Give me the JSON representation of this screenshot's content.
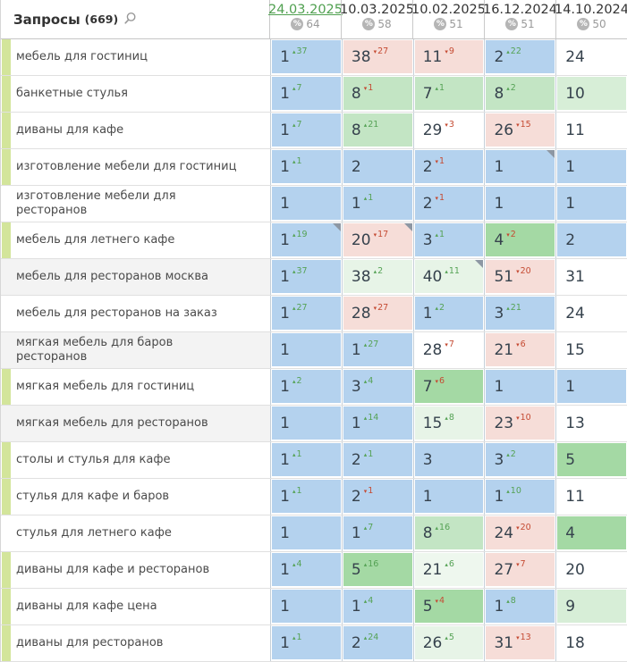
{
  "palette": {
    "blue": "#b4d2ee",
    "pink": "#f6ddd8",
    "gmed": "#a4d9a4",
    "glight": "#c3e5c4",
    "glighter": "#d7eed7",
    "gpale": "#e7f4e7",
    "gpalest": "#eef7ee",
    "white": "#ffffff",
    "strip_green": "#d3e59b",
    "current_date_green": "#50a050",
    "delta_up_color": "#55a255",
    "delta_down_color": "#c54b33",
    "note_corner_gray": "#8d97a3"
  },
  "marks": {
    "up": "▴",
    "down": "▾",
    "percent_icon": "%"
  },
  "header": {
    "title": "Запросы",
    "count": "(669)",
    "search_icon": "magnifier",
    "columns": [
      {
        "date": "24.03.2025",
        "percent": "64",
        "current": true
      },
      {
        "date": "10.03.2025",
        "percent": "58",
        "current": false
      },
      {
        "date": "10.02.2025",
        "percent": "51",
        "current": false
      },
      {
        "date": "16.12.2024",
        "percent": "51",
        "current": false
      },
      {
        "date": "14.10.2024",
        "percent": "50",
        "current": false
      }
    ]
  },
  "rows": [
    {
      "label": "мебель для гостиниц",
      "strip": true,
      "shade": false,
      "cells": [
        {
          "v": "1",
          "d": "37",
          "dir": "up",
          "bg": "blue",
          "note": false
        },
        {
          "v": "38",
          "d": "27",
          "dir": "down",
          "bg": "pink",
          "note": false
        },
        {
          "v": "11",
          "d": "9",
          "dir": "down",
          "bg": "pink",
          "note": false
        },
        {
          "v": "2",
          "d": "22",
          "dir": "up",
          "bg": "blue",
          "note": false
        },
        {
          "v": "24",
          "d": "",
          "dir": "",
          "bg": "white",
          "note": false
        }
      ]
    },
    {
      "label": "банкетные стулья",
      "strip": true,
      "shade": false,
      "cells": [
        {
          "v": "1",
          "d": "7",
          "dir": "up",
          "bg": "blue",
          "note": false
        },
        {
          "v": "8",
          "d": "1",
          "dir": "down",
          "bg": "glight",
          "note": false
        },
        {
          "v": "7",
          "d": "1",
          "dir": "up",
          "bg": "glight",
          "note": false
        },
        {
          "v": "8",
          "d": "2",
          "dir": "up",
          "bg": "glight",
          "note": false
        },
        {
          "v": "10",
          "d": "",
          "dir": "",
          "bg": "glighter",
          "note": false
        }
      ]
    },
    {
      "label": "диваны для кафе",
      "strip": true,
      "shade": false,
      "cells": [
        {
          "v": "1",
          "d": "7",
          "dir": "up",
          "bg": "blue",
          "note": false
        },
        {
          "v": "8",
          "d": "21",
          "dir": "up",
          "bg": "glight",
          "note": false
        },
        {
          "v": "29",
          "d": "3",
          "dir": "down",
          "bg": "white",
          "note": false
        },
        {
          "v": "26",
          "d": "15",
          "dir": "down",
          "bg": "pink",
          "note": false
        },
        {
          "v": "11",
          "d": "",
          "dir": "",
          "bg": "white",
          "note": false
        }
      ]
    },
    {
      "label": "изготовление мебели для гостиниц",
      "strip": true,
      "shade": false,
      "cells": [
        {
          "v": "1",
          "d": "1",
          "dir": "up",
          "bg": "blue",
          "note": false
        },
        {
          "v": "2",
          "d": "",
          "dir": "",
          "bg": "blue",
          "note": false
        },
        {
          "v": "2",
          "d": "1",
          "dir": "down",
          "bg": "blue",
          "note": false
        },
        {
          "v": "1",
          "d": "",
          "dir": "",
          "bg": "blue",
          "note": true
        },
        {
          "v": "1",
          "d": "",
          "dir": "",
          "bg": "blue",
          "note": false
        }
      ]
    },
    {
      "label": "изготовление мебели для ресторанов",
      "strip": false,
      "shade": false,
      "cells": [
        {
          "v": "1",
          "d": "",
          "dir": "",
          "bg": "blue",
          "note": false
        },
        {
          "v": "1",
          "d": "1",
          "dir": "up",
          "bg": "blue",
          "note": false
        },
        {
          "v": "2",
          "d": "1",
          "dir": "down",
          "bg": "blue",
          "note": false
        },
        {
          "v": "1",
          "d": "",
          "dir": "",
          "bg": "blue",
          "note": false
        },
        {
          "v": "1",
          "d": "",
          "dir": "",
          "bg": "blue",
          "note": false
        }
      ]
    },
    {
      "label": "мебель для летнего кафе",
      "strip": true,
      "shade": false,
      "cells": [
        {
          "v": "1",
          "d": "19",
          "dir": "up",
          "bg": "blue",
          "note": true
        },
        {
          "v": "20",
          "d": "17",
          "dir": "down",
          "bg": "pink",
          "note": true
        },
        {
          "v": "3",
          "d": "1",
          "dir": "up",
          "bg": "blue",
          "note": false
        },
        {
          "v": "4",
          "d": "2",
          "dir": "down",
          "bg": "gmed",
          "note": false
        },
        {
          "v": "2",
          "d": "",
          "dir": "",
          "bg": "blue",
          "note": false
        }
      ]
    },
    {
      "label": "мебель для ресторанов москва",
      "strip": false,
      "shade": true,
      "cells": [
        {
          "v": "1",
          "d": "37",
          "dir": "up",
          "bg": "blue",
          "note": false
        },
        {
          "v": "38",
          "d": "2",
          "dir": "up",
          "bg": "gpale",
          "note": false
        },
        {
          "v": "40",
          "d": "11",
          "dir": "up",
          "bg": "gpale",
          "note": true
        },
        {
          "v": "51",
          "d": "20",
          "dir": "down",
          "bg": "pink",
          "note": false
        },
        {
          "v": "31",
          "d": "",
          "dir": "",
          "bg": "white",
          "note": false
        }
      ]
    },
    {
      "label": "мебель для ресторанов на заказ",
      "strip": false,
      "shade": false,
      "cells": [
        {
          "v": "1",
          "d": "27",
          "dir": "up",
          "bg": "blue",
          "note": false
        },
        {
          "v": "28",
          "d": "27",
          "dir": "down",
          "bg": "pink",
          "note": false
        },
        {
          "v": "1",
          "d": "2",
          "dir": "up",
          "bg": "blue",
          "note": false
        },
        {
          "v": "3",
          "d": "21",
          "dir": "up",
          "bg": "blue",
          "note": false
        },
        {
          "v": "24",
          "d": "",
          "dir": "",
          "bg": "white",
          "note": false
        }
      ]
    },
    {
      "label": "мягкая мебель для баров ресторанов",
      "strip": false,
      "shade": true,
      "cells": [
        {
          "v": "1",
          "d": "",
          "dir": "",
          "bg": "blue",
          "note": false
        },
        {
          "v": "1",
          "d": "27",
          "dir": "up",
          "bg": "blue",
          "note": false
        },
        {
          "v": "28",
          "d": "7",
          "dir": "down",
          "bg": "white",
          "note": false
        },
        {
          "v": "21",
          "d": "6",
          "dir": "down",
          "bg": "pink",
          "note": false
        },
        {
          "v": "15",
          "d": "",
          "dir": "",
          "bg": "white",
          "note": false
        }
      ]
    },
    {
      "label": "мягкая мебель для гостиниц",
      "strip": true,
      "shade": false,
      "cells": [
        {
          "v": "1",
          "d": "2",
          "dir": "up",
          "bg": "blue",
          "note": false
        },
        {
          "v": "3",
          "d": "4",
          "dir": "up",
          "bg": "blue",
          "note": false
        },
        {
          "v": "7",
          "d": "6",
          "dir": "down",
          "bg": "gmed",
          "note": false
        },
        {
          "v": "1",
          "d": "",
          "dir": "",
          "bg": "blue",
          "note": false
        },
        {
          "v": "1",
          "d": "",
          "dir": "",
          "bg": "blue",
          "note": false
        }
      ]
    },
    {
      "label": "мягкая мебель для ресторанов",
      "strip": false,
      "shade": true,
      "cells": [
        {
          "v": "1",
          "d": "",
          "dir": "",
          "bg": "blue",
          "note": false
        },
        {
          "v": "1",
          "d": "14",
          "dir": "up",
          "bg": "blue",
          "note": false
        },
        {
          "v": "15",
          "d": "8",
          "dir": "up",
          "bg": "gpale",
          "note": false
        },
        {
          "v": "23",
          "d": "10",
          "dir": "down",
          "bg": "pink",
          "note": false
        },
        {
          "v": "13",
          "d": "",
          "dir": "",
          "bg": "white",
          "note": false
        }
      ]
    },
    {
      "label": "столы и стулья для кафе",
      "strip": true,
      "shade": false,
      "cells": [
        {
          "v": "1",
          "d": "1",
          "dir": "up",
          "bg": "blue",
          "note": false
        },
        {
          "v": "2",
          "d": "1",
          "dir": "up",
          "bg": "blue",
          "note": false
        },
        {
          "v": "3",
          "d": "",
          "dir": "",
          "bg": "blue",
          "note": false
        },
        {
          "v": "3",
          "d": "2",
          "dir": "up",
          "bg": "blue",
          "note": false
        },
        {
          "v": "5",
          "d": "",
          "dir": "",
          "bg": "gmed",
          "note": false
        }
      ]
    },
    {
      "label": "стулья для кафе и баров",
      "strip": true,
      "shade": false,
      "cells": [
        {
          "v": "1",
          "d": "1",
          "dir": "up",
          "bg": "blue",
          "note": false
        },
        {
          "v": "2",
          "d": "1",
          "dir": "down",
          "bg": "blue",
          "note": false
        },
        {
          "v": "1",
          "d": "",
          "dir": "",
          "bg": "blue",
          "note": false
        },
        {
          "v": "1",
          "d": "10",
          "dir": "up",
          "bg": "blue",
          "note": false
        },
        {
          "v": "11",
          "d": "",
          "dir": "",
          "bg": "white",
          "note": false
        }
      ]
    },
    {
      "label": "стулья для летнего кафе",
      "strip": false,
      "shade": false,
      "cells": [
        {
          "v": "1",
          "d": "",
          "dir": "",
          "bg": "blue",
          "note": false
        },
        {
          "v": "1",
          "d": "7",
          "dir": "up",
          "bg": "blue",
          "note": false
        },
        {
          "v": "8",
          "d": "16",
          "dir": "up",
          "bg": "glight",
          "note": false
        },
        {
          "v": "24",
          "d": "20",
          "dir": "down",
          "bg": "pink",
          "note": false
        },
        {
          "v": "4",
          "d": "",
          "dir": "",
          "bg": "gmed",
          "note": false
        }
      ]
    },
    {
      "label": "диваны для кафе и ресторанов",
      "strip": true,
      "shade": false,
      "cells": [
        {
          "v": "1",
          "d": "4",
          "dir": "up",
          "bg": "blue",
          "note": false
        },
        {
          "v": "5",
          "d": "16",
          "dir": "up",
          "bg": "gmed",
          "note": false
        },
        {
          "v": "21",
          "d": "6",
          "dir": "up",
          "bg": "gpalest",
          "note": false
        },
        {
          "v": "27",
          "d": "7",
          "dir": "down",
          "bg": "pink",
          "note": false
        },
        {
          "v": "20",
          "d": "",
          "dir": "",
          "bg": "white",
          "note": false
        }
      ]
    },
    {
      "label": "диваны для кафе цена",
      "strip": true,
      "shade": false,
      "cells": [
        {
          "v": "1",
          "d": "",
          "dir": "",
          "bg": "blue",
          "note": false
        },
        {
          "v": "1",
          "d": "4",
          "dir": "up",
          "bg": "blue",
          "note": false
        },
        {
          "v": "5",
          "d": "4",
          "dir": "down",
          "bg": "gmed",
          "note": false
        },
        {
          "v": "1",
          "d": "8",
          "dir": "up",
          "bg": "blue",
          "note": false
        },
        {
          "v": "9",
          "d": "",
          "dir": "",
          "bg": "glighter",
          "note": false
        }
      ]
    },
    {
      "label": "диваны для ресторанов",
      "strip": true,
      "shade": false,
      "cells": [
        {
          "v": "1",
          "d": "1",
          "dir": "up",
          "bg": "blue",
          "note": false
        },
        {
          "v": "2",
          "d": "24",
          "dir": "up",
          "bg": "blue",
          "note": false
        },
        {
          "v": "26",
          "d": "5",
          "dir": "up",
          "bg": "gpale",
          "note": false
        },
        {
          "v": "31",
          "d": "13",
          "dir": "down",
          "bg": "pink",
          "note": false
        },
        {
          "v": "18",
          "d": "",
          "dir": "",
          "bg": "white",
          "note": false
        }
      ]
    }
  ]
}
